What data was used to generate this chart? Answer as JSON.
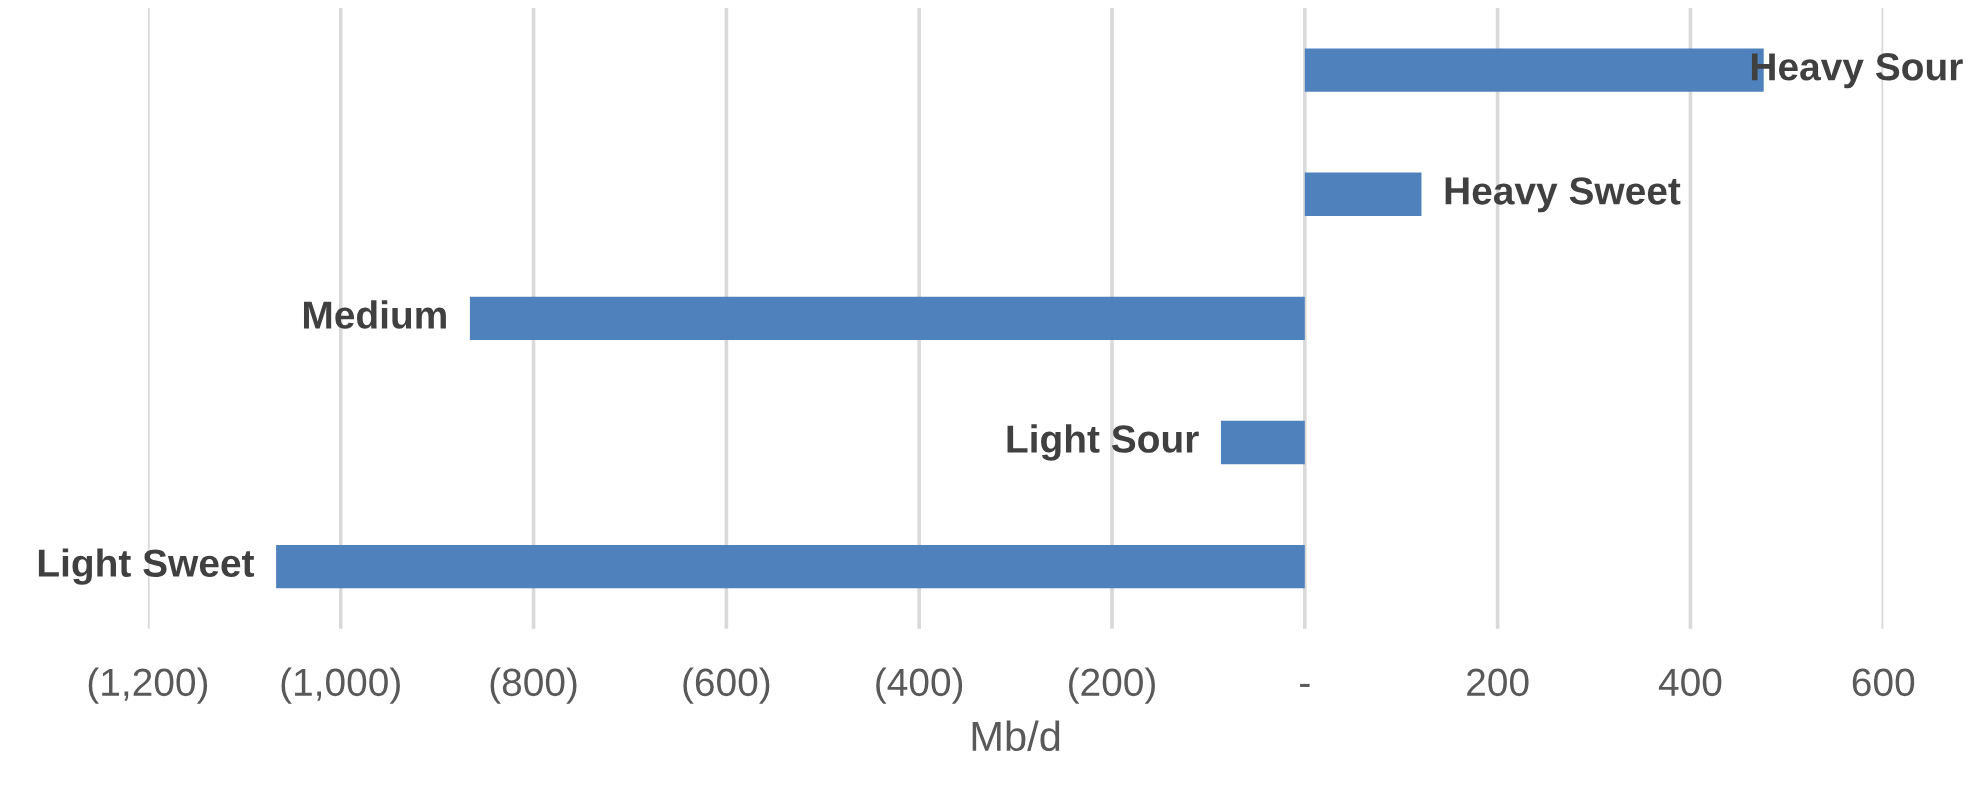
{
  "chart_data": {
    "type": "bar",
    "orientation": "horizontal",
    "xlabel": "Mb/d",
    "categories": [
      "Heavy Sour",
      "Heavy Sweet",
      "Medium",
      "Light Sour",
      "Light Sweet"
    ],
    "values": [
      476,
      121,
      -866,
      -87,
      -1067
    ],
    "color": "#4f81bd",
    "xlim": [
      -1200,
      600
    ],
    "xticks": [
      {
        "value": -1200,
        "label": "(1,200)"
      },
      {
        "value": -1000,
        "label": "(1,000)"
      },
      {
        "value": -800,
        "label": "(800)"
      },
      {
        "value": -600,
        "label": "(600)"
      },
      {
        "value": -400,
        "label": "(400)"
      },
      {
        "value": -200,
        "label": "(200)"
      },
      {
        "value": 0,
        "label": "-"
      },
      200,
      400,
      600
    ],
    "tick_labels": "x",
    "grid": "x"
  }
}
